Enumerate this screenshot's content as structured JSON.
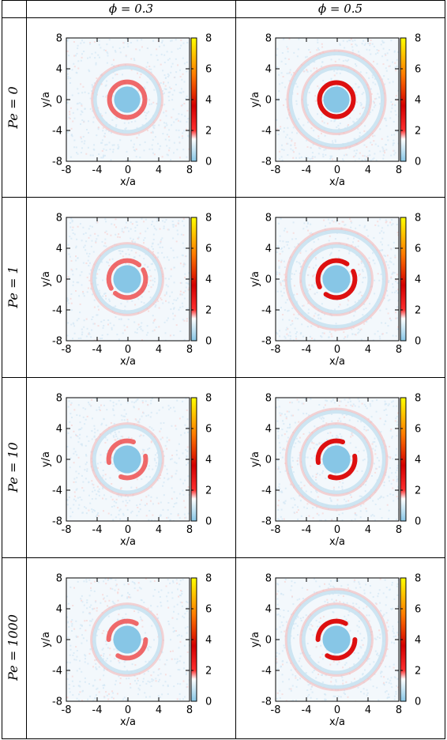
{
  "table": {
    "column_headers": [
      "ϕ = 0.3",
      "ϕ = 0.5"
    ],
    "row_headers": [
      "Pe = 0",
      "Pe = 1",
      "Pe = 10",
      "Pe = 1000"
    ]
  },
  "colors": {
    "scale": [
      "#87c6e6",
      "#ffffff",
      "#ff3030",
      "#cc0000",
      "#ff7a00",
      "#ffff00"
    ],
    "background_speckle": "#dcebf6"
  },
  "chart_data": [
    {
      "type": "heatmap",
      "row": "Pe = 0",
      "col": "ϕ = 0.3",
      "xlabel": "x/a",
      "ylabel": "y/a",
      "xlim": [
        -8,
        8
      ],
      "ylim": [
        -8,
        8
      ],
      "xticks": [
        -8,
        -4,
        0,
        4,
        8
      ],
      "yticks": [
        -8,
        -4,
        0,
        4,
        8
      ],
      "colorbar": {
        "range": [
          0,
          8
        ],
        "ticks": [
          0,
          2,
          4,
          6,
          8
        ]
      },
      "core_radius": 1.7,
      "ring_radius": 2.3,
      "peak": 2.4,
      "ring_tilt_deg": 0,
      "ring_gap_deg": 0,
      "shells": 1
    },
    {
      "type": "heatmap",
      "row": "Pe = 0",
      "col": "ϕ = 0.5",
      "xlabel": "x/a",
      "ylabel": "y/a",
      "xlim": [
        -8,
        8
      ],
      "ylim": [
        -8,
        8
      ],
      "xticks": [
        -8,
        -4,
        0,
        4,
        8
      ],
      "yticks": [
        -8,
        -4,
        0,
        4,
        8
      ],
      "colorbar": {
        "range": [
          0,
          8
        ],
        "ticks": [
          0,
          2,
          4,
          6,
          8
        ]
      },
      "core_radius": 1.7,
      "ring_radius": 2.2,
      "peak": 3.0,
      "ring_tilt_deg": 0,
      "ring_gap_deg": 0,
      "shells": 2
    },
    {
      "type": "heatmap",
      "row": "Pe = 1",
      "col": "ϕ = 0.3",
      "xlabel": "x/a",
      "ylabel": "y/a",
      "xlim": [
        -8,
        8
      ],
      "ylim": [
        -8,
        8
      ],
      "xticks": [
        -8,
        -4,
        0,
        4,
        8
      ],
      "yticks": [
        -8,
        -4,
        0,
        4,
        8
      ],
      "colorbar": {
        "range": [
          0,
          8
        ],
        "ticks": [
          0,
          2,
          4,
          6,
          8
        ]
      },
      "core_radius": 1.8,
      "ring_radius": 2.4,
      "peak": 2.6,
      "ring_tilt_deg": 40,
      "ring_gap_deg": 20,
      "shells": 1
    },
    {
      "type": "heatmap",
      "row": "Pe = 1",
      "col": "ϕ = 0.5",
      "xlabel": "x/a",
      "ylabel": "y/a",
      "xlim": [
        -8,
        8
      ],
      "ylim": [
        -8,
        8
      ],
      "xticks": [
        -8,
        -4,
        0,
        4,
        8
      ],
      "yticks": [
        -8,
        -4,
        0,
        4,
        8
      ],
      "colorbar": {
        "range": [
          0,
          8
        ],
        "ticks": [
          0,
          2,
          4,
          6,
          8
        ]
      },
      "core_radius": 1.8,
      "ring_radius": 2.4,
      "peak": 3.2,
      "ring_tilt_deg": 40,
      "ring_gap_deg": 30,
      "shells": 2
    },
    {
      "type": "heatmap",
      "row": "Pe = 10",
      "col": "ϕ = 0.3",
      "xlabel": "x/a",
      "ylabel": "y/a",
      "xlim": [
        -8,
        8
      ],
      "ylim": [
        -8,
        8
      ],
      "xticks": [
        -8,
        -4,
        0,
        4,
        8
      ],
      "yticks": [
        -8,
        -4,
        0,
        4,
        8
      ],
      "colorbar": {
        "range": [
          0,
          8
        ],
        "ticks": [
          0,
          2,
          4,
          6,
          8
        ]
      },
      "core_radius": 1.8,
      "ring_radius": 2.4,
      "peak": 2.8,
      "ring_tilt_deg": 40,
      "ring_gap_deg": 60,
      "shells": 1
    },
    {
      "type": "heatmap",
      "row": "Pe = 10",
      "col": "ϕ = 0.5",
      "xlabel": "x/a",
      "ylabel": "y/a",
      "xlim": [
        -8,
        8
      ],
      "ylim": [
        -8,
        8
      ],
      "xticks": [
        -8,
        -4,
        0,
        4,
        8
      ],
      "yticks": [
        -8,
        -4,
        0,
        4,
        8
      ],
      "colorbar": {
        "range": [
          0,
          8
        ],
        "ticks": [
          0,
          2,
          4,
          6,
          8
        ]
      },
      "core_radius": 1.8,
      "ring_radius": 2.4,
      "peak": 3.2,
      "ring_tilt_deg": 40,
      "ring_gap_deg": 60,
      "shells": 2
    },
    {
      "type": "heatmap",
      "row": "Pe = 1000",
      "col": "ϕ = 0.3",
      "xlabel": "x/a",
      "ylabel": "y/a",
      "xlim": [
        -8,
        8
      ],
      "ylim": [
        -8,
        8
      ],
      "xticks": [
        -8,
        -4,
        0,
        4,
        8
      ],
      "yticks": [
        -8,
        -4,
        0,
        4,
        8
      ],
      "colorbar": {
        "range": [
          0,
          8
        ],
        "ticks": [
          0,
          2,
          4,
          6,
          8
        ]
      },
      "core_radius": 1.8,
      "ring_radius": 2.4,
      "peak": 2.6,
      "ring_tilt_deg": 30,
      "ring_gap_deg": 60,
      "shells": 1
    },
    {
      "type": "heatmap",
      "row": "Pe = 1000",
      "col": "ϕ = 0.5",
      "xlabel": "x/a",
      "ylabel": "y/a",
      "xlim": [
        -8,
        8
      ],
      "ylim": [
        -8,
        8
      ],
      "xticks": [
        -8,
        -4,
        0,
        4,
        8
      ],
      "yticks": [
        -8,
        -4,
        0,
        4,
        8
      ],
      "colorbar": {
        "range": [
          0,
          8
        ],
        "ticks": [
          0,
          2,
          4,
          6,
          8
        ]
      },
      "core_radius": 1.8,
      "ring_radius": 2.4,
      "peak": 3.0,
      "ring_tilt_deg": 30,
      "ring_gap_deg": 60,
      "shells": 2
    }
  ]
}
